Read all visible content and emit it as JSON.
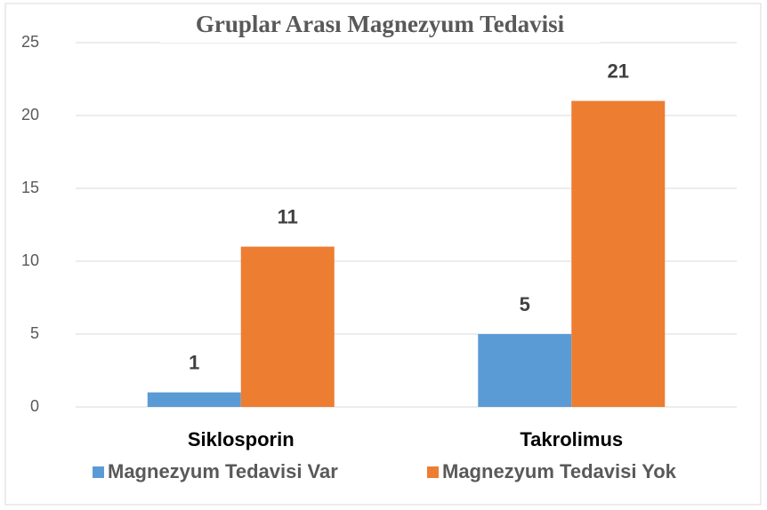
{
  "chart_data": {
    "type": "bar",
    "title": "Gruplar Arası Magnezyum Tedavisi",
    "categories": [
      "Siklosporin",
      "Takrolimus"
    ],
    "series": [
      {
        "name": "Magnezyum Tedavisi Var",
        "color": "#5b9bd5",
        "values": [
          1,
          5
        ]
      },
      {
        "name": "Magnezyum Tedavisi Yok",
        "color": "#ed7d31",
        "values": [
          11,
          21
        ]
      }
    ],
    "ylim": [
      0,
      25
    ],
    "yticks": [
      0,
      5,
      10,
      15,
      20,
      25
    ],
    "grid": true,
    "legend": "bottom"
  }
}
